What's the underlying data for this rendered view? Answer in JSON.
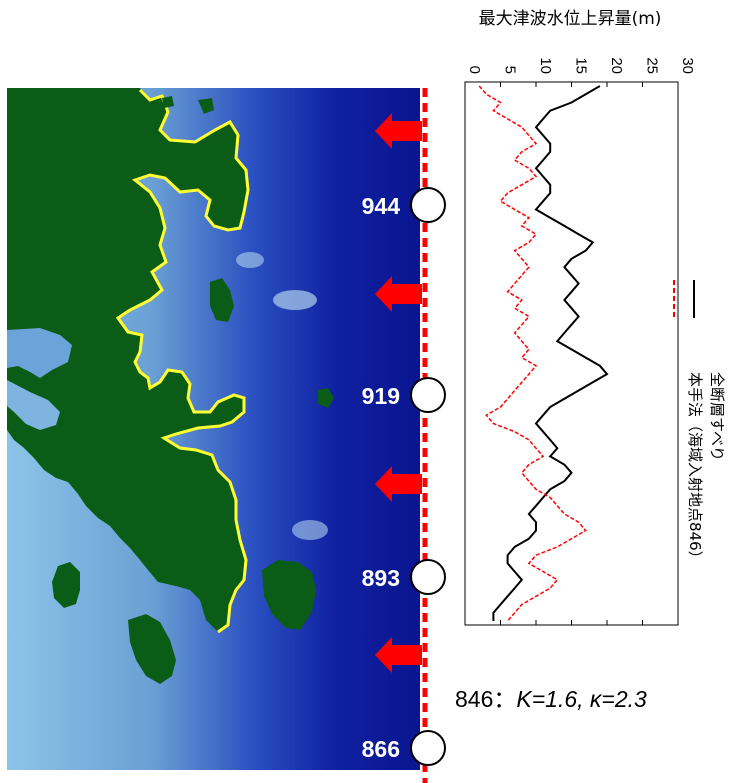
{
  "chart_data": {
    "type": "line",
    "orientation": "vertical",
    "title": "",
    "xlabel": "最大津波水位上昇量(m)",
    "xlim": [
      0,
      30
    ],
    "xticks": [
      "0",
      "5",
      "10",
      "15",
      "20",
      "25",
      "30"
    ],
    "point_axis": "coastal points 944 → 866 (top to bottom)",
    "point_labels": [
      "944",
      "919",
      "893",
      "866"
    ],
    "series": [
      {
        "name": "全断層すべり",
        "color": "#000000",
        "style": "solid",
        "values": [
          19,
          17,
          15,
          12,
          11,
          10,
          11,
          12,
          12,
          11,
          10,
          11,
          12,
          12,
          11,
          10,
          12,
          14,
          16,
          18,
          17,
          15,
          14,
          15,
          16,
          15,
          14,
          15,
          16,
          15,
          14,
          13,
          15,
          17,
          19,
          20,
          18,
          16,
          14,
          12,
          11,
          10,
          11,
          12,
          13,
          12,
          14,
          15,
          14,
          12,
          11,
          10,
          9,
          10,
          10,
          9,
          7,
          6,
          6,
          7,
          8,
          7,
          6,
          5,
          4,
          4
        ]
      },
      {
        "name": "本手法（海域入射地点846）",
        "color": "#ff0000",
        "style": "dashed",
        "values": [
          2,
          3,
          5,
          4,
          6,
          8,
          9,
          10,
          8,
          7,
          9,
          10,
          8,
          6,
          5,
          7,
          9,
          8,
          10,
          9,
          7,
          8,
          9,
          8,
          7,
          6,
          8,
          7,
          9,
          8,
          7,
          8,
          9,
          8,
          10,
          9,
          8,
          7,
          6,
          5,
          3,
          4,
          7,
          9,
          10,
          11,
          9,
          8,
          9,
          10,
          12,
          13,
          14,
          16,
          17,
          15,
          13,
          10,
          9,
          11,
          13,
          12,
          10,
          8,
          7,
          6
        ]
      }
    ],
    "legend": [
      "全断層すべり",
      "本手法（海域入射地点846）"
    ],
    "legend_position": "right, rotated",
    "grid": false
  },
  "map": {
    "point_labels": [
      "944",
      "919",
      "893",
      "866"
    ],
    "colors": {
      "land": "#0b5c16",
      "coast_highlight": "#ffff33",
      "sea_deep": "#0a1a99",
      "sea_shallow": "#7fb8e0",
      "arrow": "#ff0000"
    }
  },
  "annotation": {
    "prefix": "846：",
    "k_label": "K",
    "k_value": "=1.6, ",
    "kappa_label": "κ",
    "kappa_value": "=2.3"
  }
}
